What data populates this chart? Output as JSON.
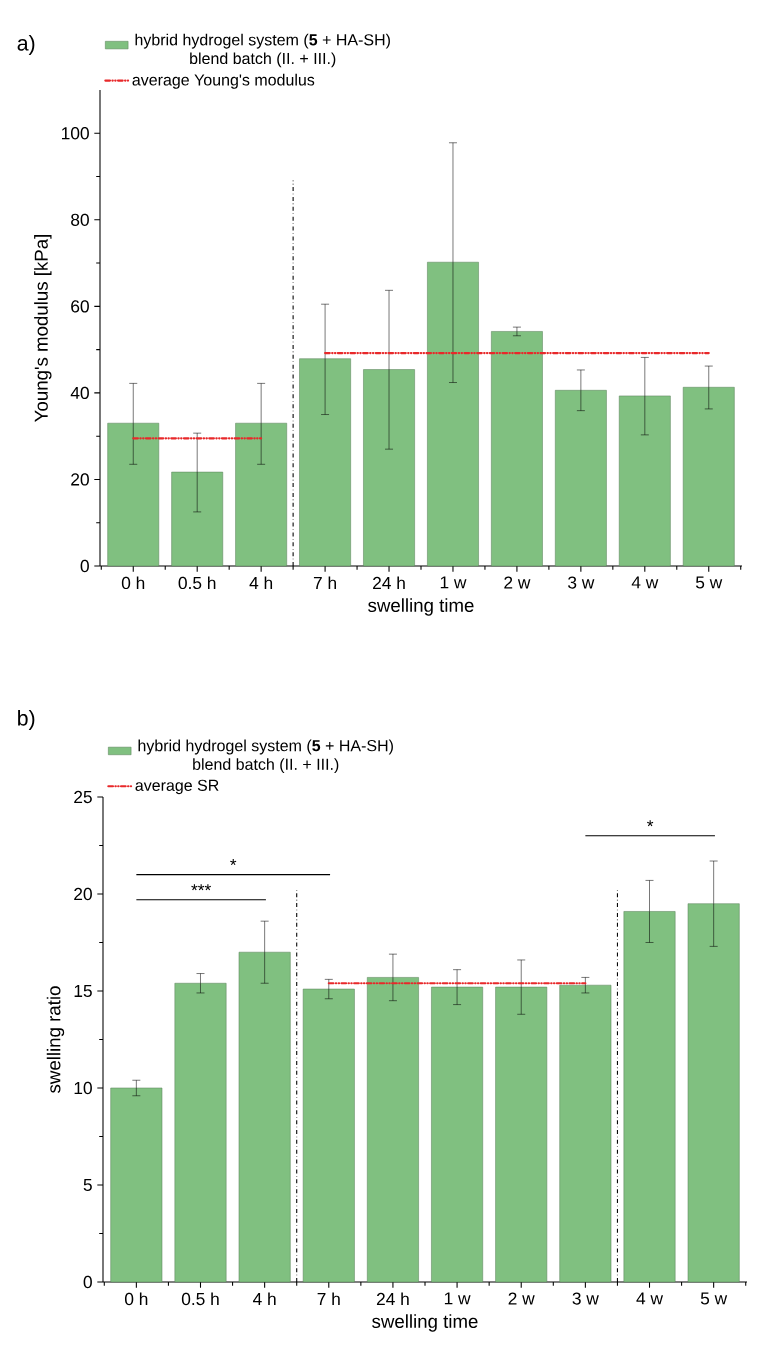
{
  "chart_data": [
    {
      "type": "bar",
      "title": "a)",
      "xlabel": "swelling time",
      "ylabel": "Young's modulus [kPa]",
      "categories": [
        "0 h",
        "0.5 h",
        "4 h",
        "7 h",
        "24 h",
        "1 w",
        "2 w",
        "3 w",
        "4 w",
        "5 w"
      ],
      "ylim": [
        0,
        110
      ],
      "yticks": [
        0,
        20,
        40,
        60,
        80,
        100
      ],
      "grid": false,
      "legend": "top left",
      "marker": "none",
      "series": [
        {
          "name": "hybrid hydrogel system (**5** + HA-SH) blend batch (II. + III.)",
          "color": "#80c080",
          "values": [
            33,
            21.7,
            33,
            47.9,
            45.4,
            70.2,
            54.2,
            40.6,
            39.3,
            41.3
          ],
          "errors": [
            [
              23.5,
              42.2
            ],
            [
              12.5,
              30.7
            ],
            [
              23.5,
              42.2
            ],
            [
              35,
              60.5
            ],
            [
              27,
              63.7
            ],
            [
              42.4,
              97.8
            ],
            [
              53.2,
              55.2
            ],
            [
              35.9,
              45.3
            ],
            [
              30.3,
              48.2
            ],
            [
              36.3,
              46.2
            ]
          ]
        },
        {
          "type": "line",
          "name": "average Young's modulus",
          "color": "#e8282a",
          "line_style": "dashdotdotted",
          "x": [
            "0 h",
            "4 h"
          ],
          "values": [
            29.5,
            29.5
          ]
        },
        {
          "type": "line",
          "color": "#e8282a",
          "line_style": "dashdotdotted",
          "x": [
            "7 h",
            "5 w"
          ],
          "values": [
            49.2,
            49.2
          ]
        }
      ]
    },
    {
      "type": "bar",
      "title": "b)",
      "xlabel": "swelling time",
      "ylabel": "swelling ratio",
      "categories": [
        "0 h",
        "0.5 h",
        "4 h",
        "7 h",
        "24 h",
        "1 w",
        "2 w",
        "3 w",
        "4 w",
        "5 w"
      ],
      "ylim": [
        0,
        25
      ],
      "yticks": [
        0,
        5,
        10,
        15,
        20,
        25
      ],
      "grid": false,
      "legend": "top left",
      "marker": "none",
      "series": [
        {
          "name": "hybrid hydrogel system (**5** + HA-SH) blend batch (II. + III.)",
          "color": "#80c080",
          "values": [
            10,
            15.4,
            17,
            15.1,
            15.7,
            15.2,
            15.2,
            15.3,
            19.1,
            19.5
          ],
          "errors": [
            [
              9.6,
              10.4
            ],
            [
              14.9,
              15.9
            ],
            [
              15.4,
              18.6
            ],
            [
              14.6,
              15.6
            ],
            [
              14.5,
              16.9
            ],
            [
              14.3,
              16.1
            ],
            [
              13.8,
              16.6
            ],
            [
              14.9,
              15.7
            ],
            [
              17.5,
              20.7
            ],
            [
              17.3,
              21.7
            ]
          ]
        },
        {
          "type": "line",
          "name": "average SR",
          "color": "#e8282a",
          "line_style": "dashdotdotted",
          "x": [
            "7 h",
            "3 w"
          ],
          "values": [
            15.4,
            15.4
          ]
        }
      ],
      "annotations": [
        "***",
        "*",
        "*"
      ]
    }
  ]
}
